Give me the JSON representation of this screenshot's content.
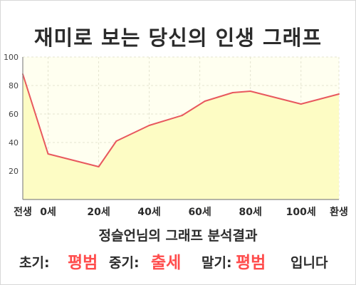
{
  "title": "재미로 보는 당신의 인생 그래프",
  "chart_data": {
    "type": "area",
    "x_categories": [
      "전생",
      "0세",
      "20세",
      "40세",
      "60세",
      "80세",
      "100세",
      "환생"
    ],
    "points": [
      {
        "x": -10,
        "y": 88
      },
      {
        "x": 0,
        "y": 32
      },
      {
        "x": 20,
        "y": 23
      },
      {
        "x": 27,
        "y": 41
      },
      {
        "x": 40,
        "y": 52
      },
      {
        "x": 53,
        "y": 59
      },
      {
        "x": 62,
        "y": 69
      },
      {
        "x": 73,
        "y": 75
      },
      {
        "x": 80,
        "y": 76
      },
      {
        "x": 100,
        "y": 67
      },
      {
        "x": 115,
        "y": 74
      }
    ],
    "x_ticks": [
      {
        "x": -10,
        "label": "전생"
      },
      {
        "x": 0,
        "label": "0세"
      },
      {
        "x": 20,
        "label": "20세"
      },
      {
        "x": 40,
        "label": "40세"
      },
      {
        "x": 60,
        "label": "60세"
      },
      {
        "x": 80,
        "label": "80세"
      },
      {
        "x": 100,
        "label": "100세"
      },
      {
        "x": 115,
        "label": "환생"
      }
    ],
    "y_ticks": [
      20,
      40,
      60,
      80,
      100
    ],
    "xlim": [
      -10,
      115
    ],
    "ylim": [
      0,
      100
    ],
    "grid": true,
    "colors": {
      "line": "#e8585e",
      "fill": "#fdfcc4",
      "plot_bg": "#fffff0",
      "axis": "#888888",
      "grid": "#e4e4d0"
    }
  },
  "result": {
    "subtitle": "정슬언님의 그래프 분석결과",
    "early_label": "초기:",
    "early_value": "평범",
    "mid_label": "중기:",
    "mid_value": "출세",
    "late_label": "말기:",
    "late_value": "평범",
    "ending": "입니다"
  }
}
